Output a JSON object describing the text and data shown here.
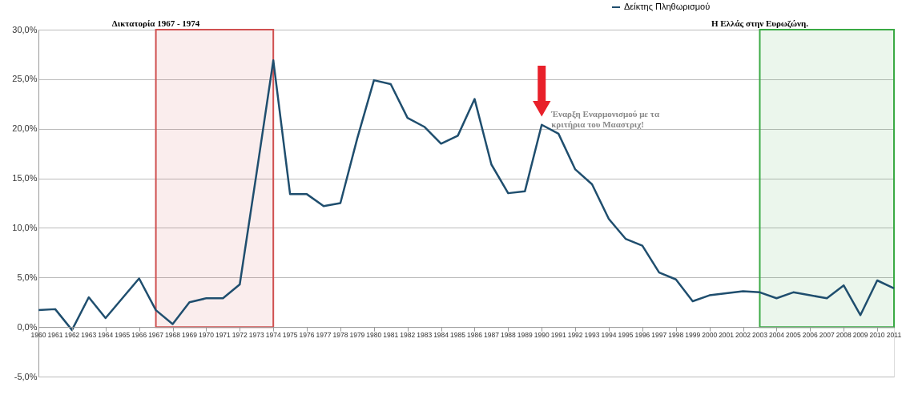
{
  "chart_data": {
    "type": "line",
    "x": [
      1960,
      1961,
      1962,
      1963,
      1964,
      1965,
      1966,
      1967,
      1968,
      1969,
      1970,
      1971,
      1972,
      1973,
      1974,
      1975,
      1976,
      1977,
      1978,
      1979,
      1980,
      1981,
      1982,
      1983,
      1984,
      1985,
      1986,
      1987,
      1988,
      1989,
      1990,
      1991,
      1992,
      1993,
      1994,
      1995,
      1996,
      1997,
      1998,
      1999,
      2000,
      2001,
      2002,
      2003,
      2004,
      2005,
      2006,
      2007,
      2008,
      2009,
      2010,
      2011
    ],
    "series": [
      {
        "name": "Δείκτης Πληθωρισμού",
        "color": "#1f4e6e",
        "values": [
          1.7,
          1.8,
          -0.3,
          3.0,
          0.9,
          2.9,
          4.9,
          1.7,
          0.3,
          2.5,
          2.9,
          2.9,
          4.3,
          15.5,
          26.9,
          13.4,
          13.4,
          12.2,
          12.5,
          19.0,
          24.9,
          24.5,
          21.1,
          20.2,
          18.5,
          19.3,
          23.0,
          16.4,
          13.5,
          13.7,
          20.4,
          19.5,
          15.9,
          14.4,
          10.9,
          8.9,
          8.2,
          5.5,
          4.8,
          2.6,
          3.2,
          3.4,
          3.6,
          3.5,
          2.9,
          3.5,
          3.2,
          2.9,
          4.2,
          1.2,
          4.7,
          3.9
        ]
      }
    ],
    "xlim": [
      1960,
      2011
    ],
    "xticks": [
      1960,
      1961,
      1962,
      1963,
      1964,
      1965,
      1966,
      1967,
      1968,
      1969,
      1970,
      1971,
      1972,
      1973,
      1974,
      1975,
      1976,
      1977,
      1978,
      1979,
      1980,
      1981,
      1982,
      1983,
      1984,
      1985,
      1986,
      1987,
      1988,
      1989,
      1990,
      1991,
      1992,
      1993,
      1994,
      1995,
      1996,
      1997,
      1998,
      1999,
      2000,
      2001,
      2002,
      2003,
      2004,
      2005,
      2006,
      2007,
      2008,
      2009,
      2010,
      2011
    ],
    "ylim": [
      -5,
      30
    ],
    "yticks": [
      {
        "value": -5,
        "label": "-5,0%"
      },
      {
        "value": 0,
        "label": "0,0%"
      },
      {
        "value": 5,
        "label": "5,0%"
      },
      {
        "value": 10,
        "label": "10,0%"
      },
      {
        "value": 15,
        "label": "15,0%"
      },
      {
        "value": 20,
        "label": "20,0%"
      },
      {
        "value": 25,
        "label": "25,0%"
      },
      {
        "value": 30,
        "label": "30,0%"
      }
    ],
    "grid": "y",
    "legend": "top",
    "marker": "none",
    "line_style": "solid",
    "bands": [
      {
        "axis": "x",
        "from": 1967,
        "to": 1974,
        "label": "Δικτατορία 1967 - 1974",
        "color": "#d05050"
      },
      {
        "axis": "x",
        "from": 2003,
        "to": 2011,
        "label": "Η Ελλάς στην Ευρωζώνη.",
        "color": "#3aaa44"
      }
    ],
    "annotations": [
      {
        "text": "Έναρξη Εναρμονισμού με τα κριτήρια του Μααστριχ!",
        "x": 1990,
        "y": 20.4
      }
    ]
  }
}
